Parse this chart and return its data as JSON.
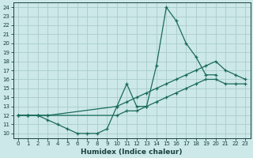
{
  "xlabel": "Humidex (Indice chaleur)",
  "bg_color": "#cce8e8",
  "grid_color": "#aacccc",
  "line_color": "#1a6b5a",
  "xlim": [
    -0.5,
    23.5
  ],
  "ylim": [
    9.5,
    24.5
  ],
  "xticks": [
    0,
    1,
    2,
    3,
    4,
    5,
    6,
    7,
    8,
    9,
    10,
    11,
    12,
    13,
    14,
    15,
    16,
    17,
    18,
    19,
    20,
    21,
    22,
    23
  ],
  "yticks": [
    10,
    11,
    12,
    13,
    14,
    15,
    16,
    17,
    18,
    19,
    20,
    21,
    22,
    23,
    24
  ],
  "line1_x": [
    0,
    1,
    2,
    3,
    4,
    5,
    6,
    7,
    8,
    9,
    10,
    11,
    12,
    13,
    14,
    15,
    16,
    17,
    18,
    19,
    20
  ],
  "line1_y": [
    12,
    12,
    12,
    11.5,
    11,
    10.5,
    10,
    10,
    10,
    10.5,
    13,
    15.5,
    13,
    13,
    17.5,
    24,
    22.5,
    20,
    18.5,
    16.5,
    16.5
  ],
  "line2_x": [
    0,
    1,
    2,
    3,
    10,
    11,
    12,
    13,
    14,
    15,
    16,
    17,
    18,
    19,
    20,
    21,
    22,
    23
  ],
  "line2_y": [
    12,
    12,
    12,
    12,
    13,
    13.5,
    14,
    14.5,
    15,
    15.5,
    16,
    16.5,
    17,
    17.5,
    18,
    17,
    16.5,
    16
  ],
  "line3_x": [
    0,
    1,
    2,
    3,
    10,
    11,
    12,
    13,
    14,
    15,
    16,
    17,
    18,
    19,
    20,
    21,
    22,
    23
  ],
  "line3_y": [
    12,
    12,
    12,
    12,
    12,
    12.5,
    12.5,
    13,
    13.5,
    14,
    14.5,
    15,
    15.5,
    16,
    16,
    15.5,
    15.5,
    15.5
  ]
}
